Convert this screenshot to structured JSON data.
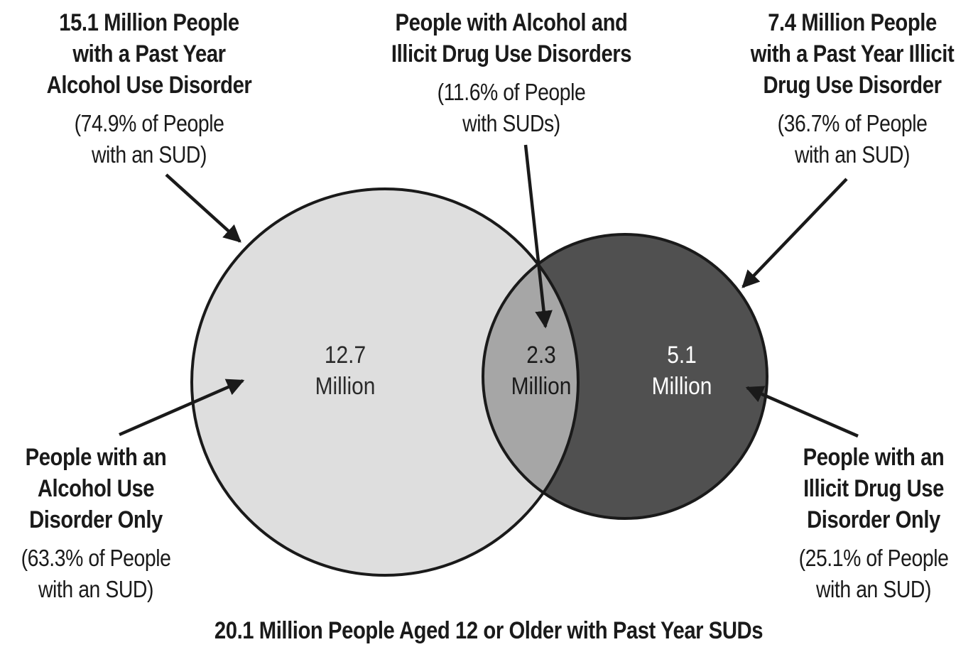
{
  "title": "20.1 Million People Aged 12 or Older with Past Year SUDs",
  "alcohol_total": {
    "lines": [
      "15.1 Million People",
      "with a Past Year",
      "Alcohol Use Disorder"
    ],
    "pct_lines": [
      "(74.9% of People",
      "with an SUD)"
    ]
  },
  "both": {
    "lines": [
      "People with Alcohol and",
      "Illicit Drug Use Disorders"
    ],
    "pct_lines": [
      "(11.6% of People",
      "with SUDs)"
    ]
  },
  "illicit_total": {
    "lines": [
      "7.4 Million People",
      "with a Past Year Illicit",
      "Drug Use Disorder"
    ],
    "pct_lines": [
      "(36.7% of People",
      "with an SUD)"
    ]
  },
  "alcohol_only": {
    "lines": [
      "People with an",
      "Alcohol Use",
      "Disorder Only"
    ],
    "pct_lines": [
      "(63.3% of People",
      "with an SUD)"
    ]
  },
  "illicit_only": {
    "lines": [
      "People with an",
      "Illicit Drug Use",
      "Disorder Only"
    ],
    "pct_lines": [
      "(25.1% of People",
      "with an SUD)"
    ]
  },
  "regions": {
    "alcohol_only": [
      "12.7",
      "Million"
    ],
    "overlap": [
      "2.3",
      "Million"
    ],
    "illicit_only": [
      "5.1",
      "Million"
    ]
  },
  "colors": {
    "alcohol_circle": "#dedede",
    "illicit_circle": "#505050",
    "overlap": "#a6a6a6",
    "outline": "#1a1a1a",
    "arrow": "#1a1a1a"
  }
}
